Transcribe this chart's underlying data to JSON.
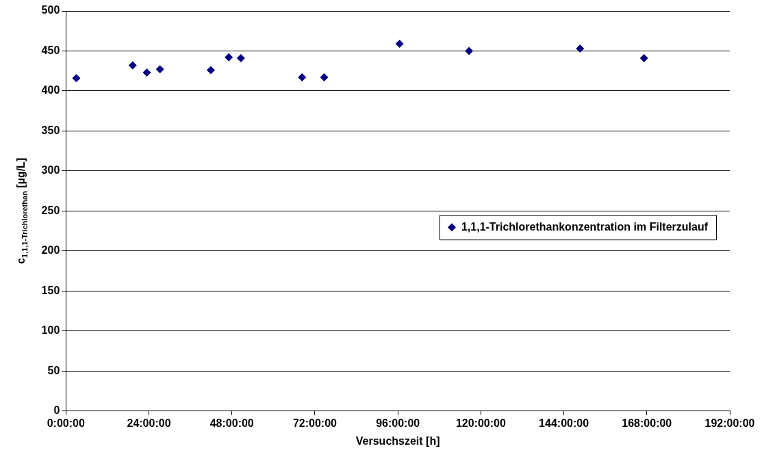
{
  "chart_data": {
    "type": "scatter",
    "xlabel": "Versuchszeit [h]",
    "ylabel": "c$_{1,1,1-Trichlorethan}$ [µg/L]",
    "x": [
      3.0,
      19.3,
      23.4,
      27.2,
      41.9,
      47.1,
      50.6,
      68.3,
      74.7,
      96.5,
      116.6,
      148.7,
      167.2
    ],
    "series": [
      {
        "name": "1,1,1-Trichlorethankonzentration im Filterzulauf",
        "color": "#000080",
        "values": [
          416,
          432,
          423,
          427,
          426,
          442,
          441,
          417,
          417,
          459,
          450,
          453,
          441
        ]
      }
    ],
    "xlim": [
      0,
      192
    ],
    "xticks": [
      {
        "value": 0,
        "label": "0:00:00"
      },
      {
        "value": 24,
        "label": "24:00:00"
      },
      {
        "value": 48,
        "label": "48:00:00"
      },
      {
        "value": 72,
        "label": "72:00:00"
      },
      {
        "value": 96,
        "label": "96:00:00"
      },
      {
        "value": 120,
        "label": "120:00:00"
      },
      {
        "value": 144,
        "label": "144:00:00"
      },
      {
        "value": 168,
        "label": "168:00:00"
      },
      {
        "value": 192,
        "label": "192:00:00"
      }
    ],
    "ylim": [
      0,
      500
    ],
    "yticks": [
      0,
      50,
      100,
      150,
      200,
      250,
      300,
      350,
      400,
      450,
      500
    ],
    "grid": "y",
    "legend": "right",
    "marker": "diamond"
  }
}
